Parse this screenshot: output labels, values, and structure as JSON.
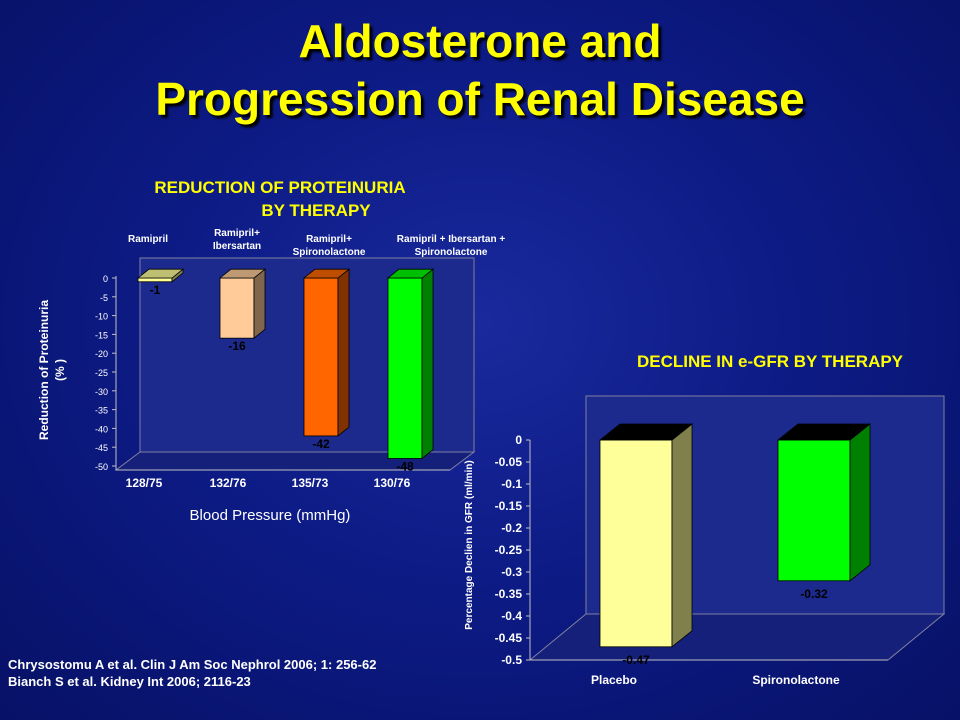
{
  "slide": {
    "title_line1": "Aldosterone and",
    "title_line2": "Progression of Renal Disease",
    "citation_line1": "Chrysostomu A et al. Clin J Am Soc Nephrol 2006; 1: 256-62",
    "citation_line2": "Bianch S et al. Kidney Int 2006; 2116-23"
  },
  "chart_data": [
    {
      "type": "bar",
      "title_line1": "REDUCTION OF PROTEINURIA",
      "title_line2": "BY THERAPY",
      "xlabel": "Blood Pressure (mmHg)",
      "ylabel_line1": "Reduction of Proteinuria",
      "ylabel_line2": "(% )",
      "categories": [
        "128/75",
        "132/76",
        "135/73",
        "130/76"
      ],
      "values": [
        -1,
        -16,
        -42,
        -48
      ],
      "data_labels": [
        "-1",
        "-16",
        "-42",
        "-48"
      ],
      "therapy_labels": [
        [
          "Ramipril"
        ],
        [
          "Ramipril+",
          "Ibersartan"
        ],
        [
          "Ramipril+",
          "Spironolactone"
        ],
        [
          "Ramipril + Ibersartan +",
          "Spironolactone"
        ]
      ],
      "bar_colors": [
        "#ffff99",
        "#ffcc99",
        "#ff6600",
        "#00ff00"
      ],
      "ylim": [
        -50,
        0
      ],
      "yticks": [
        "0",
        "-5",
        "-10",
        "-15",
        "-20",
        "-25",
        "-30",
        "-35",
        "-40",
        "-45",
        "-50"
      ],
      "grid": false
    },
    {
      "type": "bar",
      "title": "DECLINE IN e-GFR BY THERAPY",
      "ylabel": "Percentage Declien in GFR (ml/min)",
      "categories": [
        "Placebo",
        "Spironolactone"
      ],
      "values": [
        -0.47,
        -0.32
      ],
      "data_labels": [
        "-0.47",
        "-0.32"
      ],
      "bar_colors": [
        "#ffff99",
        "#00ff00"
      ],
      "ylim": [
        -0.5,
        0
      ],
      "yticks": [
        "0",
        "-0.05",
        "-0.1",
        "-0.15",
        "-0.2",
        "-0.25",
        "-0.3",
        "-0.35",
        "-0.4",
        "-0.45",
        "-0.5"
      ],
      "grid": false
    }
  ]
}
